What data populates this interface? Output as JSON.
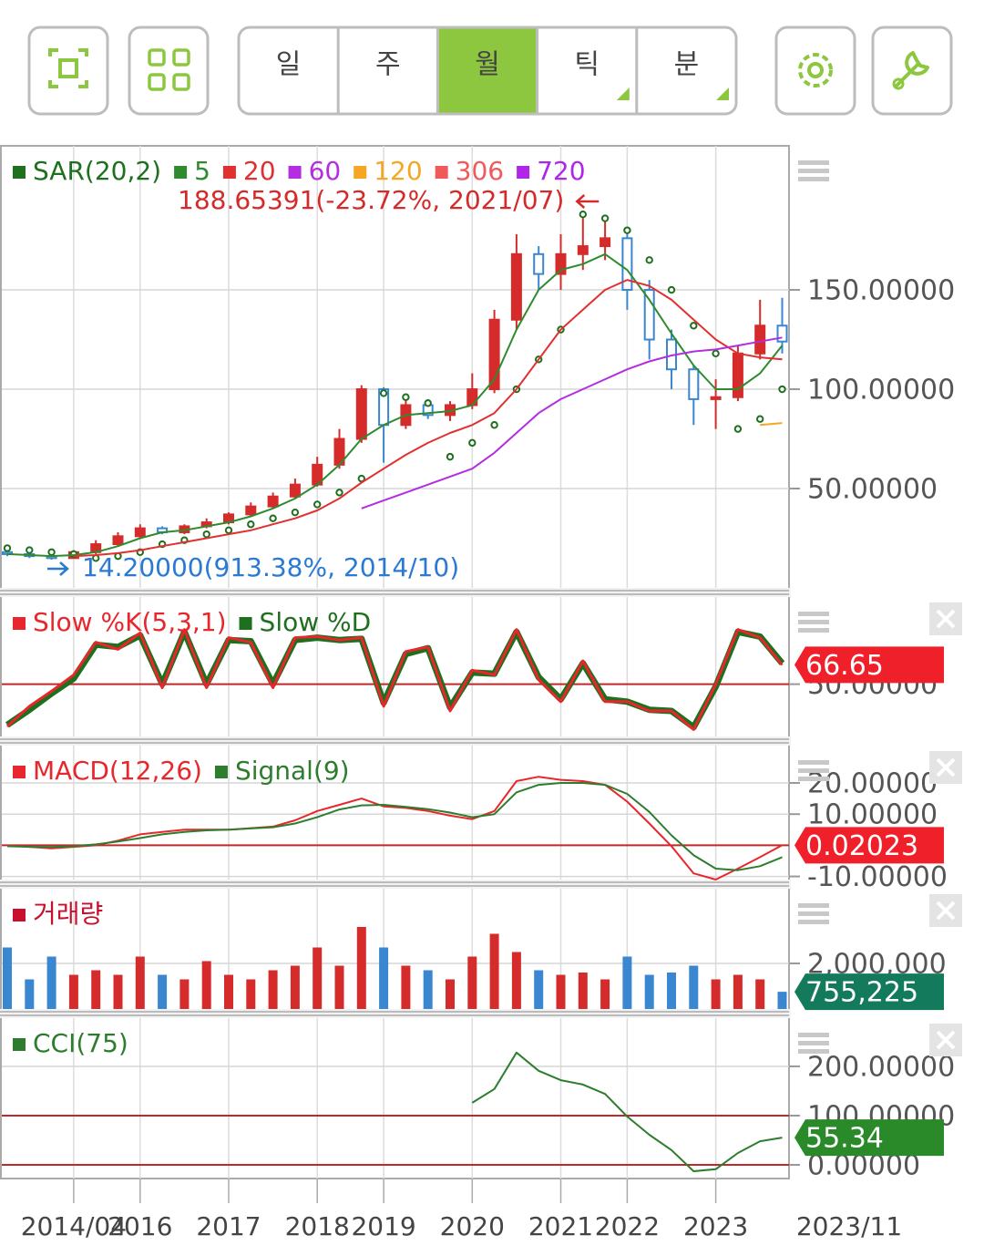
{
  "toolbar": {
    "tabs": [
      "일",
      "주",
      "월",
      "틱",
      "분"
    ],
    "selected": 2
  },
  "chart_data": [
    {
      "type": "candlestick",
      "open": [
        18,
        17,
        16,
        15,
        18,
        22,
        26,
        30,
        28,
        31,
        33,
        37,
        41,
        46,
        52,
        62,
        75,
        100,
        82,
        92,
        87,
        92,
        100,
        135,
        168,
        158,
        168,
        172,
        176,
        150,
        125,
        110,
        95,
        96,
        118,
        132
      ],
      "close": [
        17,
        16,
        15,
        18,
        22,
        26,
        30,
        28,
        31,
        33,
        37,
        41,
        46,
        52,
        62,
        75,
        100,
        82,
        92,
        87,
        92,
        100,
        135,
        168,
        158,
        168,
        172,
        176,
        150,
        125,
        110,
        95,
        96,
        118,
        132,
        124
      ],
      "high": [
        19,
        18,
        17,
        19,
        24,
        28,
        32,
        31,
        32,
        35,
        38,
        43,
        48,
        55,
        66,
        80,
        102,
        101,
        95,
        95,
        94,
        108,
        140,
        178,
        172,
        178,
        188.65391,
        185,
        180,
        155,
        130,
        112,
        105,
        122,
        145,
        146
      ],
      "low": [
        16,
        15,
        14.2,
        15,
        17,
        21,
        25,
        27,
        27,
        30,
        32,
        36,
        40,
        45,
        51,
        60,
        73,
        63,
        80,
        85,
        84,
        90,
        98,
        130,
        150,
        150,
        160,
        165,
        140,
        115,
        100,
        82,
        80,
        94,
        115,
        118
      ],
      "up_color": "#d62b2b",
      "down_color": "#3a86d0",
      "series": [
        {
          "name": "SAR(20,2)",
          "color": "#1e6f1e",
          "style": "dots",
          "values": [
            20,
            19,
            18,
            17,
            15,
            16,
            18,
            22,
            24,
            27,
            29,
            32,
            35,
            38,
            42,
            48,
            55,
            98,
            96,
            93,
            66,
            73,
            82,
            100,
            115,
            130,
            188,
            186,
            180,
            165,
            150,
            132,
            118,
            80,
            85,
            100
          ]
        },
        {
          "name": "5",
          "color": "#2e8b2e",
          "values": [
            17,
            16.5,
            16,
            16.5,
            18,
            21,
            25,
            28,
            29,
            31,
            33,
            36,
            40,
            45,
            52,
            62,
            75,
            82,
            87,
            88,
            89,
            92,
            105,
            130,
            150,
            160,
            163,
            168,
            160,
            145,
            128,
            112,
            100,
            100,
            108,
            122
          ]
        },
        {
          "name": "20",
          "color": "#e0302f",
          "values": [
            null,
            null,
            null,
            16,
            16.5,
            17.5,
            19,
            21,
            23,
            25,
            27,
            29,
            32,
            35,
            39,
            45,
            53,
            60,
            67,
            73,
            78,
            82,
            88,
            100,
            115,
            130,
            140,
            150,
            155,
            152,
            145,
            135,
            125,
            118,
            116,
            115
          ]
        },
        {
          "name": "60",
          "color": "#b42de0",
          "values": [
            null,
            null,
            null,
            null,
            null,
            null,
            null,
            null,
            null,
            null,
            null,
            null,
            null,
            null,
            null,
            null,
            40,
            44,
            48,
            52,
            56,
            60,
            68,
            78,
            88,
            95,
            100,
            105,
            110,
            114,
            117,
            119,
            120,
            122,
            124,
            126
          ]
        },
        {
          "name": "120",
          "color": "#f5a623",
          "values": [
            null,
            null,
            null,
            null,
            null,
            null,
            null,
            null,
            null,
            null,
            null,
            null,
            null,
            null,
            null,
            null,
            null,
            null,
            null,
            null,
            null,
            null,
            null,
            null,
            null,
            null,
            null,
            null,
            null,
            null,
            null,
            null,
            null,
            null,
            82,
            83
          ]
        },
        {
          "name": "306",
          "color": "#f05a5a",
          "values": [
            null,
            null,
            null,
            null,
            null,
            null,
            null,
            null,
            null,
            null,
            null,
            null,
            null,
            null,
            null,
            null,
            null,
            null,
            null,
            null,
            null,
            null,
            null,
            null,
            null,
            null,
            null,
            null,
            null,
            null,
            null,
            null,
            null,
            null,
            null,
            null
          ]
        },
        {
          "name": "720",
          "color": "#b026e8",
          "values": [
            null,
            null,
            null,
            null,
            null,
            null,
            null,
            null,
            null,
            null,
            null,
            null,
            null,
            null,
            null,
            null,
            null,
            null,
            null,
            null,
            null,
            null,
            null,
            null,
            null,
            null,
            null,
            null,
            null,
            null,
            null,
            null,
            null,
            null,
            null,
            null
          ]
        }
      ],
      "annotations": [
        {
          "label": "188.65391(-23.72%, 2021/07)",
          "color": "#d42a2a"
        },
        {
          "label": "14.20000(913.38%, 2014/10)",
          "color": "#2a7ad4"
        }
      ],
      "ylim": [
        0,
        222.5
      ],
      "yticks": [
        {
          "value": 150,
          "label": "150.00000"
        },
        {
          "value": 100,
          "label": "100.00000"
        },
        {
          "value": 50,
          "label": "50.00000"
        }
      ],
      "grid": true
    },
    {
      "type": "line",
      "series": [
        {
          "name": "Slow %K(5,3,1)",
          "color": "#e8262b",
          "width": 3,
          "values": [
            13.6,
            31,
            44,
            58,
            86,
            80,
            94,
            47,
            97,
            47,
            90,
            86,
            47,
            90,
            91,
            88,
            90,
            31,
            78,
            82,
            27,
            62,
            58,
            97,
            54,
            35,
            70,
            35,
            35,
            27,
            27,
            11,
            50,
            97,
            90,
            66.65
          ],
          "value_box": true
        },
        {
          "name": "Slow %D",
          "color": "#1e6f1e",
          "width": 7,
          "values": [
            15,
            28,
            42,
            55,
            84,
            82,
            92,
            50,
            95,
            50,
            88,
            87,
            50,
            88,
            90,
            88,
            89,
            34,
            76,
            81,
            30,
            60,
            59,
            95,
            56,
            37,
            68,
            37,
            35,
            28,
            27,
            13,
            48,
            95,
            91,
            68
          ]
        }
      ],
      "value_box_color": "#f0202a",
      "hlines": [
        50
      ],
      "hline_color": "#c0282a",
      "ylim": [
        5,
        125
      ],
      "yticks": [
        {
          "value": 50,
          "label": "50.00000"
        }
      ],
      "grid": true
    },
    {
      "type": "line",
      "series": [
        {
          "name": "MACD(12,26)",
          "color": "#e8262b",
          "width": 2,
          "values": [
            0,
            -0.5,
            -1,
            -0.5,
            0,
            1.5,
            3.5,
            4.3,
            5,
            5,
            5,
            5.5,
            6,
            8,
            11,
            13,
            15,
            12.5,
            12,
            11,
            9.5,
            8.4,
            11,
            20.6,
            22,
            21,
            20.6,
            19.4,
            14,
            7,
            -0.3,
            -9,
            -11,
            -7.5,
            -3.8,
            0.02023
          ],
          "value_box": true
        },
        {
          "name": "Signal(9)",
          "color": "#2e7d2e",
          "width": 2,
          "values": [
            -0.3,
            -0.5,
            -0.6,
            -0.3,
            0.3,
            1.2,
            2.3,
            3.5,
            4.3,
            4.8,
            5,
            5.4,
            5.8,
            7,
            9,
            11.5,
            12.8,
            13,
            12.3,
            11.6,
            10.5,
            9,
            10,
            17,
            19.4,
            20,
            20,
            19.4,
            16.5,
            10.7,
            3.2,
            -3.2,
            -7.5,
            -8,
            -6.7,
            -3.8
          ]
        }
      ],
      "value_box_color": "#f0202a",
      "hlines": [
        0
      ],
      "hline_color": "#c0282a",
      "ylim": [
        -11,
        32
      ],
      "yticks": [
        {
          "value": 20,
          "label": "20.00000"
        },
        {
          "value": 10,
          "label": "10.00000"
        },
        {
          "value": -10,
          "label": "-10.00000"
        }
      ],
      "grid": true
    },
    {
      "type": "bar",
      "series": [
        {
          "name": "거래량",
          "color": "#c8102e",
          "values": [
            2700000,
            1300000,
            2300000,
            1500000,
            1700000,
            1500000,
            2300000,
            1500000,
            1300000,
            2100000,
            1500000,
            1300000,
            1700000,
            1900000,
            2700000,
            1900000,
            3600000,
            2700000,
            1900000,
            1700000,
            1300000,
            2300000,
            3300000,
            2500000,
            1700000,
            1500000,
            1600000,
            1300000,
            2300000,
            1500000,
            1600000,
            1900000,
            1300000,
            1500000,
            1300000,
            755225
          ],
          "value_labels": [
            null,
            null,
            null,
            null,
            null,
            null,
            null,
            null,
            null,
            null,
            null,
            null,
            null,
            null,
            null,
            null,
            null,
            null,
            null,
            null,
            null,
            null,
            null,
            null,
            null,
            null,
            null,
            null,
            null,
            null,
            null,
            null,
            null,
            null,
            null,
            "755,225"
          ],
          "value_box": true
        }
      ],
      "up_color": "#d62b2b",
      "down_color": "#3a86d0",
      "value_box_color": "#147a5c",
      "ylim": [
        0,
        5280000
      ],
      "yticks": [
        {
          "value": 2000000,
          "label": "2,000,000"
        }
      ],
      "grid": true
    },
    {
      "type": "line",
      "series": [
        {
          "name": "CCI(75)",
          "color": "#2e7d2e",
          "width": 2,
          "values": [
            null,
            null,
            null,
            null,
            null,
            null,
            null,
            null,
            null,
            null,
            null,
            null,
            null,
            null,
            null,
            null,
            null,
            null,
            null,
            null,
            null,
            126,
            154,
            228,
            191,
            172,
            163,
            144,
            98,
            61,
            30,
            -13,
            -9,
            24,
            48,
            55.34
          ],
          "value_box": true
        }
      ],
      "value_box_color": "#2a8a2a",
      "hlines": [
        100,
        0
      ],
      "hline_color": "#c0282a",
      "ylim": [
        -27.8,
        298
      ],
      "yticks": [
        {
          "value": 200,
          "label": "200.00000"
        },
        {
          "value": 100,
          "label": "100.00000"
        },
        {
          "value": 0,
          "label": "0.00000"
        }
      ],
      "grid": true,
      "categories": [
        null,
        null,
        null,
        "2014/04",
        null,
        null,
        "2016",
        null,
        null,
        null,
        "2017",
        null,
        null,
        null,
        "2018",
        null,
        null,
        "2019",
        null,
        null,
        null,
        "2020",
        null,
        null,
        null,
        "2021",
        null,
        null,
        "2022",
        null,
        null,
        null,
        "2023",
        null,
        null,
        null
      ],
      "latest_label": "2023/11"
    }
  ]
}
